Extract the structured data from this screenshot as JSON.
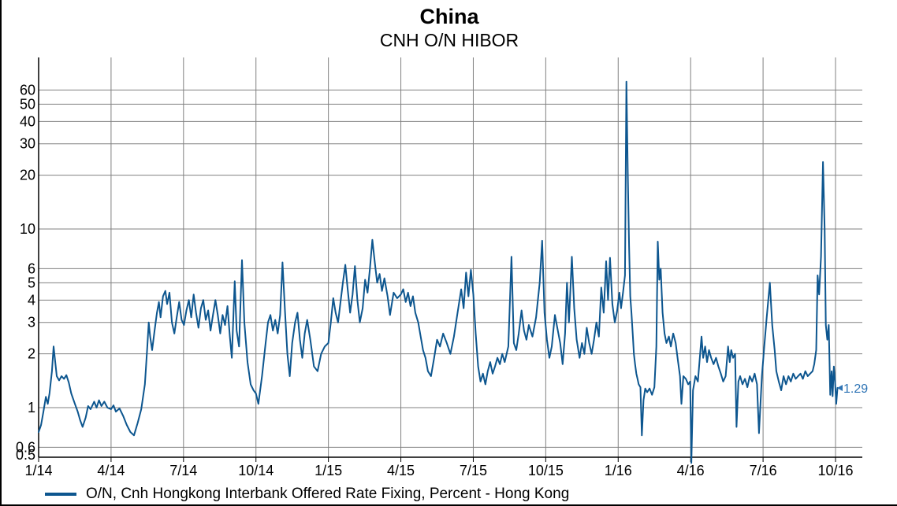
{
  "title": "China",
  "subtitle": "CNH O/N HIBOR",
  "legend": {
    "label": "O/N, Cnh Hongkong Interbank Offered Rate Fixing, Percent - Hong Kong"
  },
  "end_label": {
    "text": "1.29"
  },
  "colors": {
    "line": "#0D568F",
    "grid": "#808080",
    "axis": "#000000",
    "end_label": "#2E74B5",
    "text": "#000000"
  },
  "chart_data": {
    "type": "line",
    "title": "China",
    "subtitle": "CNH O/N HIBOR",
    "series_name": "O/N, Cnh Hongkong Interbank Offered Rate Fixing, Percent - Hong Kong",
    "y_scale": "log",
    "ylabel": "Percent",
    "y_ticks": [
      0.5,
      0.6,
      1,
      2,
      3,
      4,
      5,
      6,
      10,
      20,
      30,
      40,
      50,
      60
    ],
    "y_range": [
      0.47,
      90
    ],
    "grid": true,
    "legend_position": "bottom-left",
    "x_unit": "months since 1/2014",
    "x_tick_months": [
      0,
      3,
      6,
      9,
      12,
      15,
      18,
      21,
      24,
      27,
      30,
      33
    ],
    "x_tick_labels": [
      "1/14",
      "4/14",
      "7/14",
      "10/14",
      "1/15",
      "4/15",
      "7/15",
      "10/15",
      "1/16",
      "4/16",
      "7/16",
      "10/16"
    ],
    "last_value": 1.29,
    "max_value": 66.8,
    "points": [
      [
        0,
        0.73
      ],
      [
        0.1,
        0.8
      ],
      [
        0.2,
        0.95
      ],
      [
        0.3,
        1.15
      ],
      [
        0.38,
        1.05
      ],
      [
        0.45,
        1.2
      ],
      [
        0.55,
        1.6
      ],
      [
        0.62,
        2.2
      ],
      [
        0.68,
        1.85
      ],
      [
        0.75,
        1.5
      ],
      [
        0.85,
        1.42
      ],
      [
        0.95,
        1.5
      ],
      [
        1.05,
        1.45
      ],
      [
        1.15,
        1.52
      ],
      [
        1.25,
        1.38
      ],
      [
        1.35,
        1.2
      ],
      [
        1.5,
        1.05
      ],
      [
        1.62,
        0.95
      ],
      [
        1.72,
        0.85
      ],
      [
        1.82,
        0.78
      ],
      [
        1.95,
        0.88
      ],
      [
        2.05,
        1.02
      ],
      [
        2.15,
        0.98
      ],
      [
        2.3,
        1.08
      ],
      [
        2.4,
        1.0
      ],
      [
        2.5,
        1.1
      ],
      [
        2.6,
        1.02
      ],
      [
        2.72,
        1.08
      ],
      [
        2.85,
        1.0
      ],
      [
        3.0,
        0.98
      ],
      [
        3.1,
        1.03
      ],
      [
        3.2,
        0.95
      ],
      [
        3.35,
        0.99
      ],
      [
        3.5,
        0.9
      ],
      [
        3.65,
        0.8
      ],
      [
        3.8,
        0.73
      ],
      [
        3.95,
        0.7
      ],
      [
        4.1,
        0.82
      ],
      [
        4.25,
        0.98
      ],
      [
        4.4,
        1.35
      ],
      [
        4.5,
        2.2
      ],
      [
        4.56,
        3.0
      ],
      [
        4.62,
        2.5
      ],
      [
        4.7,
        2.1
      ],
      [
        4.8,
        2.7
      ],
      [
        4.9,
        3.4
      ],
      [
        4.98,
        3.9
      ],
      [
        5.05,
        3.2
      ],
      [
        5.15,
        4.2
      ],
      [
        5.25,
        4.5
      ],
      [
        5.32,
        3.8
      ],
      [
        5.42,
        4.4
      ],
      [
        5.52,
        3.0
      ],
      [
        5.62,
        2.6
      ],
      [
        5.72,
        3.2
      ],
      [
        5.82,
        3.9
      ],
      [
        5.92,
        3.1
      ],
      [
        6.02,
        2.9
      ],
      [
        6.12,
        3.5
      ],
      [
        6.22,
        4.0
      ],
      [
        6.32,
        3.2
      ],
      [
        6.42,
        4.3
      ],
      [
        6.52,
        3.4
      ],
      [
        6.62,
        2.8
      ],
      [
        6.72,
        3.6
      ],
      [
        6.82,
        4.0
      ],
      [
        6.92,
        3.1
      ],
      [
        7.02,
        3.5
      ],
      [
        7.12,
        2.7
      ],
      [
        7.22,
        3.3
      ],
      [
        7.32,
        4.0
      ],
      [
        7.42,
        3.3
      ],
      [
        7.52,
        2.6
      ],
      [
        7.62,
        3.3
      ],
      [
        7.72,
        2.9
      ],
      [
        7.82,
        3.7
      ],
      [
        7.92,
        2.5
      ],
      [
        8.0,
        1.9
      ],
      [
        8.12,
        5.1
      ],
      [
        8.2,
        2.7
      ],
      [
        8.3,
        2.2
      ],
      [
        8.42,
        6.7
      ],
      [
        8.52,
        3.0
      ],
      [
        8.65,
        1.8
      ],
      [
        8.78,
        1.35
      ],
      [
        8.9,
        1.25
      ],
      [
        9.0,
        1.2
      ],
      [
        9.1,
        1.05
      ],
      [
        9.25,
        1.5
      ],
      [
        9.4,
        2.3
      ],
      [
        9.5,
        3.0
      ],
      [
        9.6,
        3.3
      ],
      [
        9.7,
        2.7
      ],
      [
        9.8,
        3.1
      ],
      [
        9.9,
        2.6
      ],
      [
        10.0,
        3.3
      ],
      [
        10.1,
        6.5
      ],
      [
        10.2,
        3.5
      ],
      [
        10.3,
        2.0
      ],
      [
        10.4,
        1.5
      ],
      [
        10.5,
        2.3
      ],
      [
        10.62,
        3.0
      ],
      [
        10.72,
        3.4
      ],
      [
        10.82,
        2.4
      ],
      [
        10.92,
        1.9
      ],
      [
        11.02,
        2.6
      ],
      [
        11.12,
        3.1
      ],
      [
        11.25,
        2.4
      ],
      [
        11.4,
        1.7
      ],
      [
        11.55,
        1.6
      ],
      [
        11.7,
        2.0
      ],
      [
        11.85,
        2.2
      ],
      [
        12.0,
        2.3
      ],
      [
        12.1,
        3.0
      ],
      [
        12.2,
        4.1
      ],
      [
        12.3,
        3.4
      ],
      [
        12.4,
        3.0
      ],
      [
        12.5,
        3.9
      ],
      [
        12.6,
        5.0
      ],
      [
        12.7,
        6.3
      ],
      [
        12.8,
        4.6
      ],
      [
        12.9,
        3.4
      ],
      [
        13.0,
        4.3
      ],
      [
        13.1,
        6.2
      ],
      [
        13.2,
        4.0
      ],
      [
        13.3,
        3.0
      ],
      [
        13.42,
        3.6
      ],
      [
        13.52,
        5.2
      ],
      [
        13.62,
        4.4
      ],
      [
        13.72,
        6.0
      ],
      [
        13.82,
        8.7
      ],
      [
        13.92,
        6.5
      ],
      [
        14.02,
        5.0
      ],
      [
        14.12,
        5.6
      ],
      [
        14.22,
        4.5
      ],
      [
        14.32,
        5.3
      ],
      [
        14.45,
        4.2
      ],
      [
        14.55,
        3.3
      ],
      [
        14.7,
        4.4
      ],
      [
        14.85,
        4.1
      ],
      [
        15.0,
        4.3
      ],
      [
        15.1,
        4.6
      ],
      [
        15.2,
        3.9
      ],
      [
        15.3,
        4.4
      ],
      [
        15.4,
        3.7
      ],
      [
        15.5,
        4.2
      ],
      [
        15.6,
        3.4
      ],
      [
        15.72,
        3.0
      ],
      [
        15.82,
        2.5
      ],
      [
        15.92,
        2.1
      ],
      [
        16.02,
        1.9
      ],
      [
        16.12,
        1.6
      ],
      [
        16.25,
        1.5
      ],
      [
        16.38,
        1.9
      ],
      [
        16.5,
        2.4
      ],
      [
        16.62,
        2.2
      ],
      [
        16.75,
        2.6
      ],
      [
        16.9,
        2.3
      ],
      [
        17.05,
        2.0
      ],
      [
        17.2,
        2.5
      ],
      [
        17.35,
        3.4
      ],
      [
        17.5,
        4.6
      ],
      [
        17.6,
        3.6
      ],
      [
        17.7,
        5.7
      ],
      [
        17.8,
        4.2
      ],
      [
        17.9,
        5.9
      ],
      [
        18.0,
        4.3
      ],
      [
        18.1,
        2.6
      ],
      [
        18.2,
        1.7
      ],
      [
        18.3,
        1.4
      ],
      [
        18.4,
        1.55
      ],
      [
        18.5,
        1.35
      ],
      [
        18.6,
        1.6
      ],
      [
        18.7,
        1.8
      ],
      [
        18.8,
        1.55
      ],
      [
        18.9,
        1.7
      ],
      [
        19.0,
        1.9
      ],
      [
        19.1,
        1.75
      ],
      [
        19.2,
        2.0
      ],
      [
        19.3,
        1.8
      ],
      [
        19.45,
        2.2
      ],
      [
        19.58,
        7.0
      ],
      [
        19.68,
        2.3
      ],
      [
        19.78,
        2.1
      ],
      [
        19.88,
        2.6
      ],
      [
        20.0,
        3.5
      ],
      [
        20.1,
        2.7
      ],
      [
        20.2,
        2.4
      ],
      [
        20.3,
        2.9
      ],
      [
        20.45,
        2.5
      ],
      [
        20.6,
        3.2
      ],
      [
        20.75,
        5.0
      ],
      [
        20.85,
        8.6
      ],
      [
        20.95,
        3.4
      ],
      [
        21.05,
        2.4
      ],
      [
        21.15,
        1.9
      ],
      [
        21.25,
        2.2
      ],
      [
        21.38,
        3.3
      ],
      [
        21.5,
        2.7
      ],
      [
        21.6,
        2.3
      ],
      [
        21.7,
        1.75
      ],
      [
        21.8,
        2.6
      ],
      [
        21.88,
        5.0
      ],
      [
        21.96,
        3.0
      ],
      [
        22.08,
        7.0
      ],
      [
        22.18,
        3.6
      ],
      [
        22.28,
        2.4
      ],
      [
        22.4,
        1.9
      ],
      [
        22.5,
        2.3
      ],
      [
        22.6,
        2.0
      ],
      [
        22.7,
        2.8
      ],
      [
        22.8,
        2.3
      ],
      [
        22.9,
        2.0
      ],
      [
        23.0,
        2.4
      ],
      [
        23.1,
        3.0
      ],
      [
        23.2,
        2.5
      ],
      [
        23.3,
        4.7
      ],
      [
        23.4,
        3.4
      ],
      [
        23.5,
        6.6
      ],
      [
        23.58,
        4.0
      ],
      [
        23.66,
        6.9
      ],
      [
        23.76,
        3.8
      ],
      [
        23.86,
        3.0
      ],
      [
        23.96,
        3.5
      ],
      [
        24.05,
        4.4
      ],
      [
        24.12,
        3.6
      ],
      [
        24.2,
        4.4
      ],
      [
        24.28,
        5.5
      ],
      [
        24.34,
        66.8
      ],
      [
        24.4,
        20.0
      ],
      [
        24.45,
        8.0
      ],
      [
        24.5,
        4.2
      ],
      [
        24.55,
        3.4
      ],
      [
        24.6,
        2.6
      ],
      [
        24.65,
        2.0
      ],
      [
        24.7,
        1.75
      ],
      [
        24.75,
        1.55
      ],
      [
        24.8,
        1.45
      ],
      [
        24.85,
        1.35
      ],
      [
        24.92,
        1.3
      ],
      [
        24.98,
        0.7
      ],
      [
        25.05,
        1.1
      ],
      [
        25.12,
        1.28
      ],
      [
        25.2,
        1.22
      ],
      [
        25.3,
        1.28
      ],
      [
        25.4,
        1.18
      ],
      [
        25.5,
        1.3
      ],
      [
        25.58,
        2.2
      ],
      [
        25.64,
        8.5
      ],
      [
        25.7,
        5.2
      ],
      [
        25.76,
        6.0
      ],
      [
        25.84,
        3.4
      ],
      [
        25.92,
        2.6
      ],
      [
        26.0,
        2.3
      ],
      [
        26.1,
        2.5
      ],
      [
        26.18,
        2.2
      ],
      [
        26.28,
        2.6
      ],
      [
        26.38,
        2.3
      ],
      [
        26.48,
        1.8
      ],
      [
        26.56,
        1.5
      ],
      [
        26.62,
        1.05
      ],
      [
        26.7,
        1.5
      ],
      [
        26.8,
        1.45
      ],
      [
        26.9,
        1.35
      ],
      [
        26.98,
        1.4
      ],
      [
        27.03,
        0.49
      ],
      [
        27.1,
        1.25
      ],
      [
        27.2,
        1.5
      ],
      [
        27.3,
        1.4
      ],
      [
        27.45,
        2.5
      ],
      [
        27.52,
        1.9
      ],
      [
        27.6,
        2.2
      ],
      [
        27.68,
        1.8
      ],
      [
        27.76,
        2.1
      ],
      [
        27.85,
        1.9
      ],
      [
        27.95,
        1.75
      ],
      [
        28.05,
        1.9
      ],
      [
        28.15,
        1.7
      ],
      [
        28.25,
        1.55
      ],
      [
        28.35,
        1.4
      ],
      [
        28.45,
        1.5
      ],
      [
        28.55,
        2.2
      ],
      [
        28.62,
        1.8
      ],
      [
        28.68,
        2.1
      ],
      [
        28.76,
        1.9
      ],
      [
        28.84,
        2.0
      ],
      [
        28.9,
        0.78
      ],
      [
        28.98,
        1.4
      ],
      [
        29.05,
        1.5
      ],
      [
        29.15,
        1.35
      ],
      [
        29.25,
        1.45
      ],
      [
        29.35,
        1.3
      ],
      [
        29.45,
        1.5
      ],
      [
        29.55,
        1.4
      ],
      [
        29.65,
        1.55
      ],
      [
        29.75,
        1.35
      ],
      [
        29.83,
        0.72
      ],
      [
        29.95,
        1.5
      ],
      [
        30.05,
        2.2
      ],
      [
        30.15,
        3.2
      ],
      [
        30.28,
        5.0
      ],
      [
        30.38,
        2.9
      ],
      [
        30.48,
        2.1
      ],
      [
        30.55,
        1.6
      ],
      [
        30.65,
        1.4
      ],
      [
        30.75,
        1.25
      ],
      [
        30.85,
        1.5
      ],
      [
        30.95,
        1.35
      ],
      [
        31.05,
        1.5
      ],
      [
        31.15,
        1.4
      ],
      [
        31.25,
        1.55
      ],
      [
        31.35,
        1.45
      ],
      [
        31.45,
        1.5
      ],
      [
        31.55,
        1.55
      ],
      [
        31.65,
        1.45
      ],
      [
        31.75,
        1.6
      ],
      [
        31.85,
        1.5
      ],
      [
        31.95,
        1.55
      ],
      [
        32.05,
        1.6
      ],
      [
        32.12,
        1.75
      ],
      [
        32.2,
        2.1
      ],
      [
        32.26,
        5.5
      ],
      [
        32.32,
        4.3
      ],
      [
        32.4,
        7.0
      ],
      [
        32.48,
        23.7
      ],
      [
        32.55,
        10.0
      ],
      [
        32.6,
        2.9
      ],
      [
        32.66,
        2.4
      ],
      [
        32.72,
        2.9
      ],
      [
        32.78,
        1.18
      ],
      [
        32.84,
        1.6
      ],
      [
        32.88,
        1.16
      ],
      [
        32.93,
        1.7
      ],
      [
        32.98,
        1.4
      ],
      [
        33.03,
        1.05
      ],
      [
        33.08,
        1.29
      ]
    ]
  }
}
